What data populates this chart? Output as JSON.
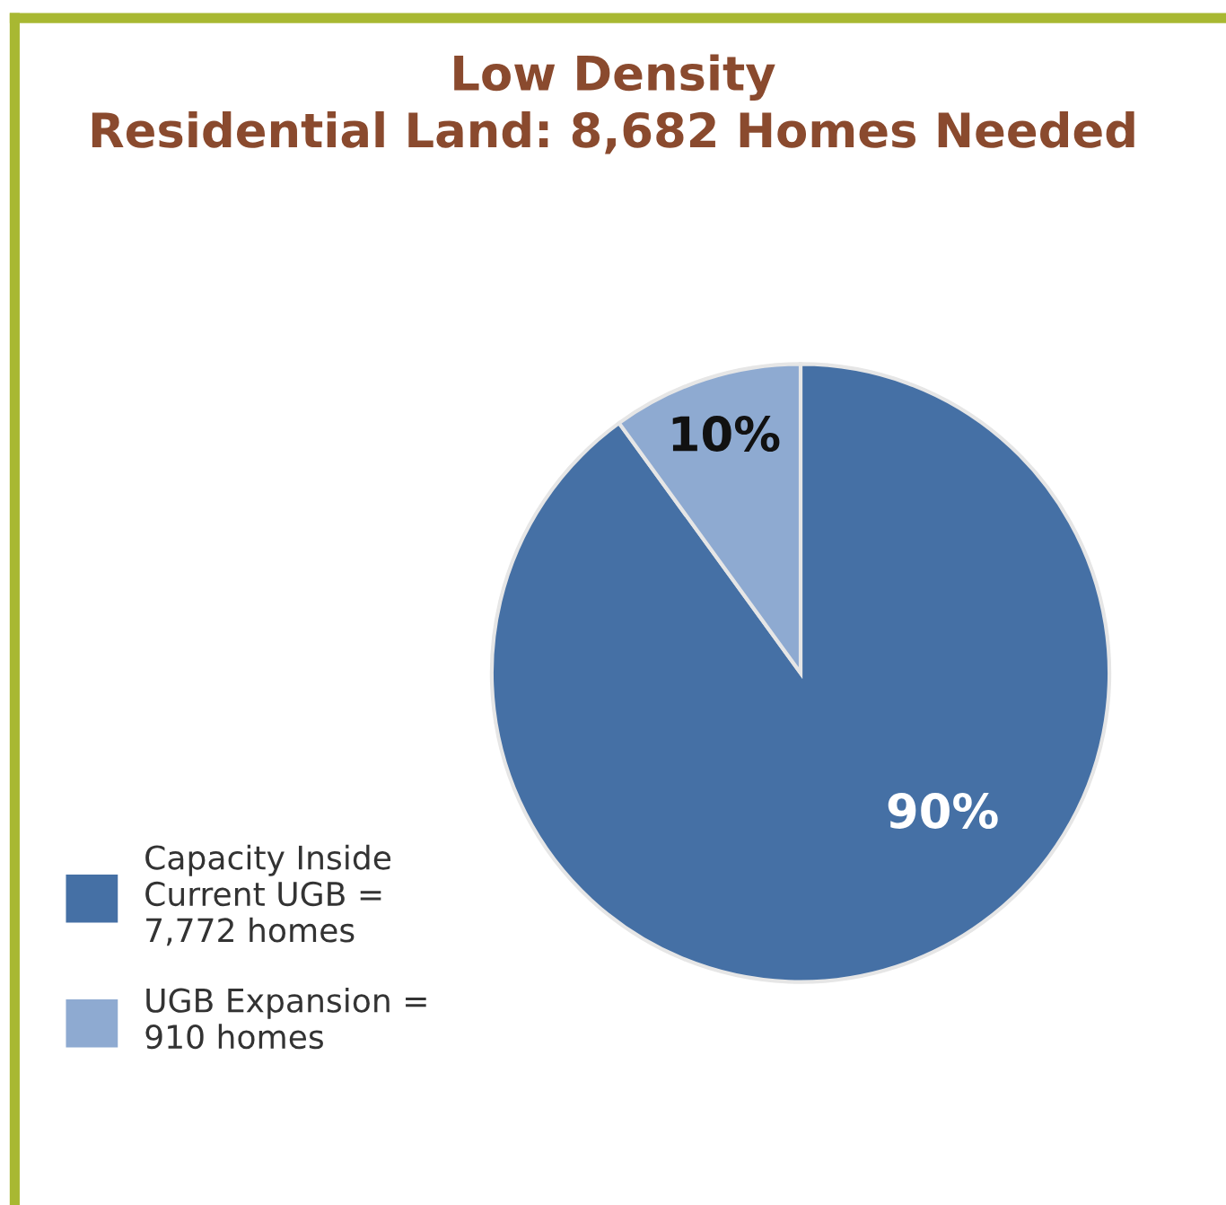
{
  "chart_data": {
    "type": "pie",
    "title": "Low Density\nResidential Land: 8,682 Homes Needed",
    "categories": [
      "Capacity Inside\nCurrent UGB =\n7,772 homes",
      "UGB Expansion =\n910 homes"
    ],
    "values": [
      90,
      10
    ],
    "colors": [
      "#4570a5",
      "#8eaad1"
    ],
    "value_labels": [
      "90%",
      "10%"
    ],
    "legend": "bottom left"
  }
}
